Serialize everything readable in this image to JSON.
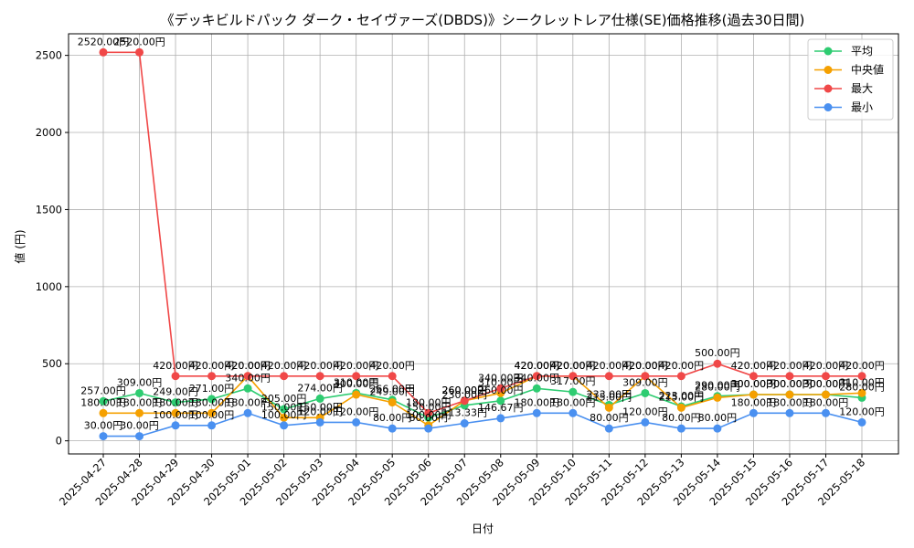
{
  "chart_data": {
    "type": "line",
    "title": "《デッキビルドパック ダーク・セイヴァーズ(DBDS)》シークレットレア仕様(SE)価格推移(過去30日間)",
    "xlabel": "日付",
    "ylabel": "値 (円)",
    "ylim": [
      -85,
      2640
    ],
    "yticks": [
      0,
      500,
      1000,
      1500,
      2000,
      2500
    ],
    "grid": true,
    "legend_position": "top-right",
    "categories": [
      "2025-04-27",
      "2025-04-28",
      "2025-04-29",
      "2025-04-30",
      "2025-05-01",
      "2025-05-02",
      "2025-05-03",
      "2025-05-04",
      "2025-05-05",
      "2025-05-06",
      "2025-05-07",
      "2025-05-08",
      "2025-05-09",
      "2025-05-10",
      "2025-05-11",
      "2025-05-12",
      "2025-05-13",
      "2025-05-14",
      "2025-05-15",
      "2025-05-16",
      "2025-05-17",
      "2025-05-18"
    ],
    "series": [
      {
        "name": "平均",
        "color": "#2ecc71",
        "values": [
          257,
          309,
          249,
          271,
          340,
          205,
          274,
          310,
          266,
          150,
          230,
          260,
          340,
          317,
          233,
          309,
          223,
          290,
          300,
          300,
          300,
          280
        ],
        "labels": [
          "257.00円",
          "309.00円",
          "249.00円",
          "271.00円",
          "340.00円",
          "205.00円",
          "274.00円",
          "310.00円",
          "266.00円",
          "150.00円",
          "230.00円",
          "260.00円",
          "340.00円",
          "317.00円",
          "233.00円",
          "309.00円",
          "223.00円",
          "290.00円",
          "300.00円",
          "300.00円",
          "300.00円",
          "280.00円"
        ]
      },
      {
        "name": "中央値",
        "color": "#f5a000",
        "values": [
          180,
          180,
          180,
          180,
          420,
          150,
          150,
          300,
          249,
          100,
          260,
          310,
          420,
          420,
          215,
          420,
          215,
          280,
          300,
          300,
          300,
          310
        ],
        "labels": [
          "180.00円",
          "180.00円",
          "180.00円",
          "180.00円",
          "420.00円",
          "150.00円",
          "150.00円",
          "300.00円",
          "249.00円",
          "100.00円",
          "260.00円",
          "310.00円",
          "420.00円",
          "420.00円",
          "215.00円",
          "420.00円",
          "215.00円",
          "280.00円",
          "300.00円",
          "300.00円",
          "300.00円",
          "310.00円"
        ]
      },
      {
        "name": "最大",
        "color": "#f04848",
        "values": [
          2520,
          2520,
          420,
          420,
          420,
          420,
          420,
          420,
          420,
          180,
          260,
          340,
          420,
          420,
          420,
          420,
          420,
          500,
          420,
          420,
          420,
          420
        ],
        "labels": [
          "2520.00円",
          "2520.00円",
          "420.00円",
          "420.00円",
          "420.00円",
          "420.00円",
          "420.00円",
          "420.00円",
          "420.00円",
          "180.00円",
          "260.00円",
          "340.00円",
          "420.00円",
          "420.00円",
          "420.00円",
          "420.00円",
          "420.00円",
          "500.00円",
          "420.00円",
          "420.00円",
          "420.00円",
          "420.00円"
        ]
      },
      {
        "name": "最小",
        "color": "#4a90f0",
        "values": [
          30,
          30,
          100,
          100,
          180,
          100,
          120,
          120,
          80,
          80,
          113.33,
          146.67,
          180,
          180,
          80,
          120,
          80,
          80,
          180,
          180,
          180,
          120
        ],
        "labels": [
          "30.00円",
          "30.00円",
          "100.00円",
          "100.00円",
          "180.00円",
          "100.00円",
          "120.00円",
          "120.00円",
          "80.00円",
          "80.00円",
          "113.33円",
          "146.67円",
          "180.00円",
          "180.00円",
          "80.00円",
          "120.00円",
          "80.00円",
          "80.00円",
          "180.00円",
          "180.00円",
          "180.00円",
          "120.00円"
        ]
      }
    ]
  }
}
